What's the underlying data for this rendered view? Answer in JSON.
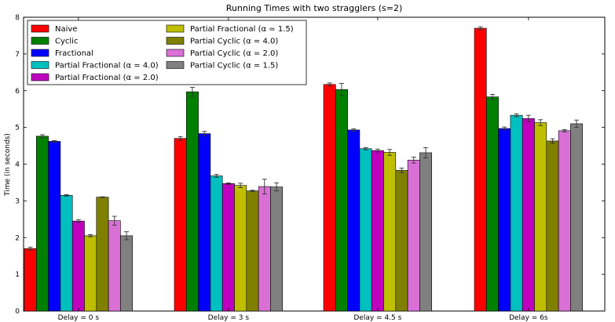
{
  "chart_data": {
    "type": "bar",
    "title": "Running Times with two stragglers (s=2)",
    "xlabel": "",
    "ylabel": "Time (in seconds)",
    "ylim": [
      0,
      8
    ],
    "yticks": [
      0,
      1,
      2,
      3,
      4,
      5,
      6,
      7,
      8
    ],
    "categories": [
      "Delay = 0 s",
      "Delay = 3 s",
      "Delay = 4.5 s",
      "Delay = 6s"
    ],
    "legend_position": "top-left",
    "series": [
      {
        "name": "Naive",
        "color": "#ff0000",
        "values": [
          1.7,
          4.7,
          6.17,
          7.7
        ],
        "errors": [
          0.04,
          0.05,
          0.04,
          0.04
        ]
      },
      {
        "name": "Cyclic",
        "color": "#008000",
        "values": [
          4.76,
          5.97,
          6.03,
          5.83
        ],
        "errors": [
          0.04,
          0.12,
          0.17,
          0.07
        ]
      },
      {
        "name": "Fractional",
        "color": "#0000ff",
        "values": [
          4.62,
          4.83,
          4.93,
          4.97
        ],
        "errors": [
          0.02,
          0.06,
          0.03,
          0.04
        ]
      },
      {
        "name": "Partial Fractional (α =  4.0)",
        "color": "#00bfbf",
        "values": [
          3.15,
          3.68,
          4.42,
          5.33
        ],
        "errors": [
          0.02,
          0.04,
          0.03,
          0.04
        ]
      },
      {
        "name": "Partial Fractional (α =  2.0)",
        "color": "#bf00bf",
        "values": [
          2.45,
          3.47,
          4.37,
          5.24
        ],
        "errors": [
          0.04,
          0.02,
          0.04,
          0.09
        ]
      },
      {
        "name": "Partial Fractional (α =  1.5)",
        "color": "#bfbf00",
        "values": [
          2.05,
          3.42,
          4.32,
          5.13
        ],
        "errors": [
          0.03,
          0.06,
          0.08,
          0.08
        ]
      },
      {
        "name": "Partial Cyclic (α =  4.0)",
        "color": "#808000",
        "values": [
          3.1,
          3.27,
          3.83,
          4.63
        ],
        "errors": [
          0.01,
          0.02,
          0.06,
          0.06
        ]
      },
      {
        "name": "Partial Cyclic (α =  2.0)",
        "color": "#da70d6",
        "values": [
          2.46,
          3.39,
          4.11,
          4.91
        ],
        "errors": [
          0.12,
          0.2,
          0.08,
          0.03
        ]
      },
      {
        "name": "Partial Cyclic (α =  1.5)",
        "color": "#808080",
        "values": [
          2.05,
          3.38,
          4.31,
          5.1
        ],
        "errors": [
          0.11,
          0.11,
          0.14,
          0.1
        ]
      }
    ]
  }
}
